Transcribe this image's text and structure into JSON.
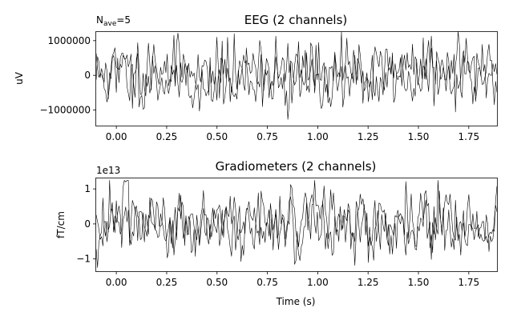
{
  "chart_data": [
    {
      "type": "line",
      "title": "EEG (2 channels)",
      "ylabel": "uV",
      "xlabel": "",
      "annotation": {
        "main": "N",
        "sub": "ave",
        "rest": "=5"
      },
      "offset_label": "",
      "xlim": [
        -0.1,
        1.89
      ],
      "ylim": [
        -1450000,
        1250000
      ],
      "xticks": [
        0.0,
        0.25,
        0.5,
        0.75,
        1.0,
        1.25,
        1.5,
        1.75
      ],
      "xtick_labels": [
        "0.00",
        "0.25",
        "0.50",
        "0.75",
        "1.00",
        "1.25",
        "1.50",
        "1.75"
      ],
      "yticks": [
        -1000000,
        0,
        1000000
      ],
      "ytick_labels": [
        "−1000000",
        "0",
        "1000000"
      ],
      "n_samples": 300,
      "amplitude": 500000,
      "series": [
        {
          "seed": 11,
          "color": "#000000"
        },
        {
          "seed": 29,
          "color": "#000000"
        }
      ]
    },
    {
      "type": "line",
      "title": "Gradiometers (2 channels)",
      "ylabel": "fT/cm",
      "xlabel": "Time (s)",
      "offset_label": "1e13",
      "xlim": [
        -0.1,
        1.89
      ],
      "ylim": [
        -1.35,
        1.3
      ],
      "xticks": [
        0.0,
        0.25,
        0.5,
        0.75,
        1.0,
        1.25,
        1.5,
        1.75
      ],
      "xtick_labels": [
        "0.00",
        "0.25",
        "0.50",
        "0.75",
        "1.00",
        "1.25",
        "1.50",
        "1.75"
      ],
      "yticks": [
        -1,
        0,
        1
      ],
      "ytick_labels": [
        "−1",
        "0",
        "1"
      ],
      "n_samples": 300,
      "amplitude": 0.5,
      "series": [
        {
          "seed": 47,
          "color": "#000000"
        },
        {
          "seed": 83,
          "color": "#000000"
        }
      ]
    }
  ]
}
